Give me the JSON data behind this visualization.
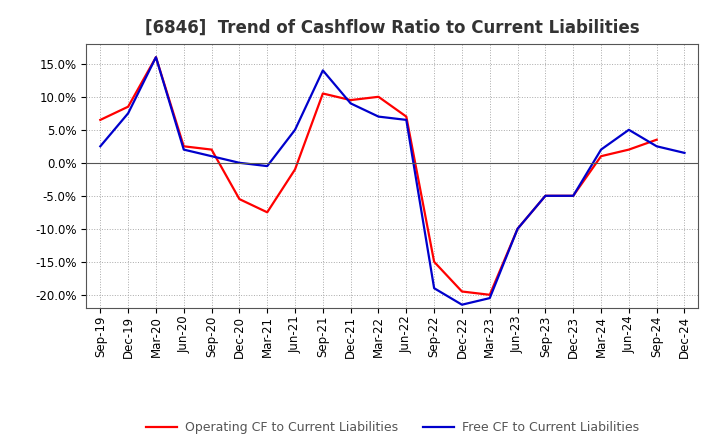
{
  "title": "[6846]  Trend of Cashflow Ratio to Current Liabilities",
  "x_labels": [
    "Sep-19",
    "Dec-19",
    "Mar-20",
    "Jun-20",
    "Sep-20",
    "Dec-20",
    "Mar-21",
    "Jun-21",
    "Sep-21",
    "Dec-21",
    "Mar-22",
    "Jun-22",
    "Sep-22",
    "Dec-22",
    "Mar-23",
    "Jun-23",
    "Sep-23",
    "Dec-23",
    "Mar-24",
    "Jun-24",
    "Sep-24",
    "Dec-24"
  ],
  "operating_cf": [
    6.5,
    8.5,
    16.0,
    2.5,
    2.0,
    -5.5,
    -7.5,
    -1.0,
    10.5,
    9.5,
    10.0,
    7.0,
    -15.0,
    -19.5,
    -20.0,
    -10.0,
    -5.0,
    -5.0,
    1.0,
    2.0,
    3.5,
    null
  ],
  "free_cf": [
    2.5,
    7.5,
    16.0,
    2.0,
    1.0,
    0.0,
    -0.5,
    5.0,
    14.0,
    9.0,
    7.0,
    6.5,
    -19.0,
    -21.5,
    -20.5,
    -10.0,
    -5.0,
    -5.0,
    2.0,
    5.0,
    2.5,
    1.5
  ],
  "operating_color": "#ff0000",
  "free_color": "#0000cc",
  "ylim": [
    -22,
    18
  ],
  "yticks": [
    -20.0,
    -15.0,
    -10.0,
    -5.0,
    0.0,
    5.0,
    10.0,
    15.0
  ],
  "background_color": "#ffffff",
  "grid_color": "#aaaaaa",
  "title_fontsize": 12,
  "legend_fontsize": 9,
  "tick_fontsize": 8.5,
  "legend_operating": "Operating CF to Current Liabilities",
  "legend_free": "Free CF to Current Liabilities"
}
